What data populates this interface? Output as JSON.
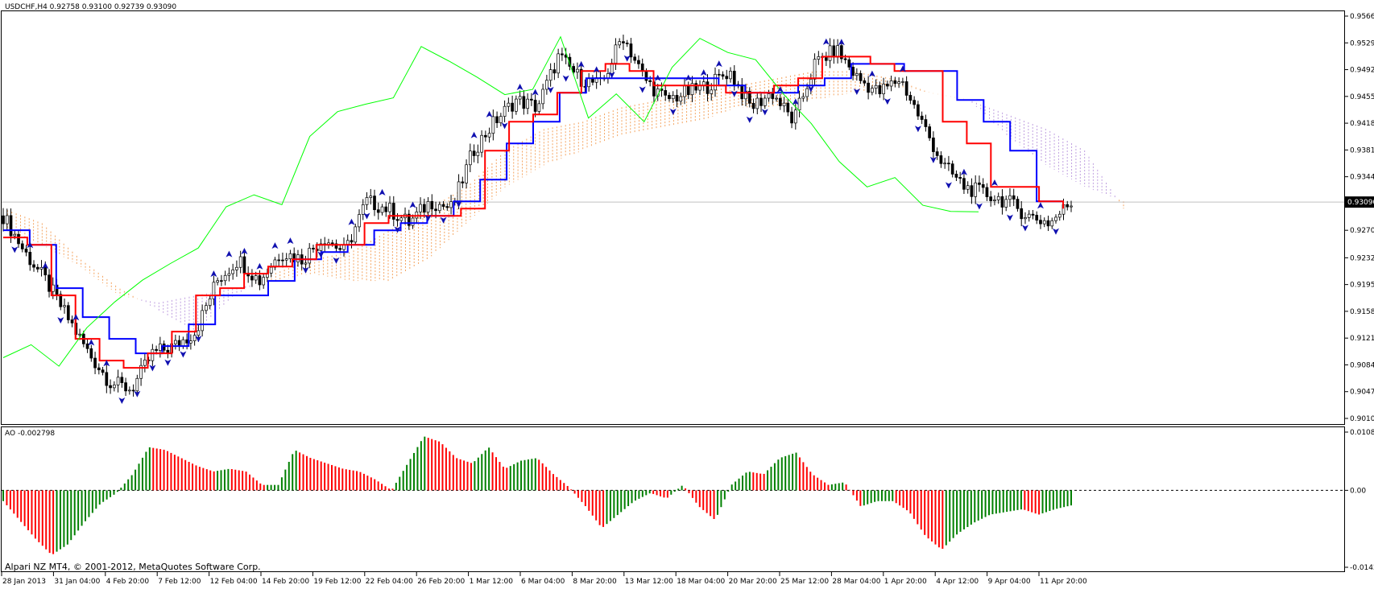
{
  "window": {
    "header": "USDCHF,H4  0.92758 0.93100 0.92739 0.93090",
    "copyright": "Alpari NZ MT4, © 2001-2012, MetaQuotes Software Corp."
  },
  "colors": {
    "background": "#ffffff",
    "frame": "#000000",
    "bull_candle": "#ffffff",
    "bear_candle": "#000000",
    "tenkan": "#ff0000",
    "kijun": "#0000ff",
    "chikou": "#00ff00",
    "cloud_up": "#f4a460",
    "cloud_down": "#c0a0e0",
    "fractal": "#1010b0",
    "ao_up": "#008000",
    "ao_down": "#ff0000",
    "current_price_line": "#c0c0c0"
  },
  "chart_data": [
    {
      "type": "candlestick",
      "symbol": "USDCHF",
      "timeframe": "H4",
      "last_bar": {
        "open": 0.92758,
        "high": 0.931,
        "low": 0.92739,
        "close": 0.9309
      },
      "current_price_label": "0.93090",
      "ylim": [
        0.901,
        0.9566
      ],
      "y_ticks": [
        "0.95660",
        "0.95290",
        "0.94920",
        "0.94550",
        "0.94180",
        "0.93810",
        "0.93440",
        "0.92700",
        "0.92320",
        "0.91950",
        "0.91580",
        "0.91210",
        "0.90840",
        "0.90470",
        "0.90100"
      ],
      "x_ticks": [
        "28 Jan 2013",
        "31 Jan 04:00",
        "4 Feb 20:00",
        "7 Feb 12:00",
        "12 Feb 04:00",
        "14 Feb 20:00",
        "19 Feb 12:00",
        "22 Feb 04:00",
        "26 Feb 20:00",
        "1 Mar 12:00",
        "6 Mar 04:00",
        "8 Mar 20:00",
        "13 Mar 12:00",
        "18 Mar 04:00",
        "20 Mar 20:00",
        "25 Mar 12:00",
        "28 Mar 04:00",
        "1 Apr 20:00",
        "4 Apr 12:00",
        "9 Apr 04:00",
        "11 Apr 20:00"
      ],
      "indicators": [
        "Ichimoku Kinko Hyo",
        "Fractals"
      ],
      "close_path": [
        0.929,
        0.924,
        0.92,
        0.915,
        0.91,
        0.906,
        0.905,
        0.91,
        0.911,
        0.913,
        0.92,
        0.923,
        0.92,
        0.924,
        0.923,
        0.926,
        0.924,
        0.931,
        0.93,
        0.928,
        0.931,
        0.93,
        0.938,
        0.942,
        0.945,
        0.944,
        0.951,
        0.948,
        0.947,
        0.954,
        0.948,
        0.945,
        0.946,
        0.947,
        0.949,
        0.944,
        0.946,
        0.942,
        0.95,
        0.952,
        0.948,
        0.946,
        0.948,
        0.942,
        0.936,
        0.933,
        0.932,
        0.931,
        0.929,
        0.928,
        0.9309
      ],
      "tenkan_path": [
        0.926,
        0.925,
        0.918,
        0.912,
        0.909,
        0.908,
        0.91,
        0.913,
        0.918,
        0.919,
        0.921,
        0.922,
        0.923,
        0.925,
        0.925,
        0.928,
        0.929,
        0.929,
        0.929,
        0.93,
        0.938,
        0.942,
        0.943,
        0.946,
        0.949,
        0.95,
        0.949,
        0.947,
        0.947,
        0.947,
        0.946,
        0.946,
        0.947,
        0.948,
        0.951,
        0.951,
        0.95,
        0.949,
        0.949,
        0.942,
        0.939,
        0.933,
        0.933,
        0.931,
        0.93
      ],
      "kijun_path": [
        0.927,
        0.925,
        0.919,
        0.915,
        0.912,
        0.91,
        0.911,
        0.914,
        0.918,
        0.918,
        0.92,
        0.923,
        0.924,
        0.925,
        0.927,
        0.928,
        0.929,
        0.931,
        0.934,
        0.939,
        0.942,
        0.946,
        0.948,
        0.948,
        0.948,
        0.948,
        0.948,
        0.947,
        0.946,
        0.946,
        0.947,
        0.948,
        0.95,
        0.95,
        0.949,
        0.949,
        0.945,
        0.942,
        0.938,
        0.931,
        0.931
      ],
      "chikou_path": [
        0.91,
        0.911,
        0.908,
        0.914,
        0.917,
        0.92,
        0.923,
        0.925,
        0.93,
        0.932,
        0.931,
        0.94,
        0.943,
        0.944,
        0.945,
        0.953,
        0.95,
        0.948,
        0.946,
        0.947,
        0.954,
        0.943,
        0.946,
        0.942,
        0.95,
        0.954,
        0.951,
        0.95,
        0.946,
        0.942,
        0.936,
        0.933,
        0.934,
        0.931,
        0.93,
        0.929
      ],
      "cloud": {
        "span_a": [
          0.93,
          0.928,
          0.923,
          0.919,
          0.916,
          0.913,
          0.918,
          0.921,
          0.923,
          0.924,
          0.927,
          0.93,
          0.933,
          0.938,
          0.941,
          0.942,
          0.944,
          0.945,
          0.946,
          0.947,
          0.948,
          0.949,
          0.949,
          0.948,
          0.946,
          0.945,
          0.94,
          0.936,
          0.933,
          0.931
        ],
        "span_b": [
          0.927,
          0.925,
          0.922,
          0.918,
          0.917,
          0.918,
          0.919,
          0.92,
          0.921,
          0.92,
          0.92,
          0.923,
          0.928,
          0.933,
          0.936,
          0.938,
          0.94,
          0.941,
          0.942,
          0.944,
          0.944,
          0.945,
          0.946,
          0.947,
          0.946,
          0.945,
          0.943,
          0.941,
          0.938,
          0.93
        ]
      }
    },
    {
      "type": "bar",
      "indicator": "AO",
      "label": "AO -0.002798",
      "ylim": [
        -0.01427,
        0.0108
      ],
      "y_ticks": [
        "0.01080",
        "0.00",
        "-0.01427"
      ],
      "values": [
        -0.002,
        -0.0055,
        -0.009,
        -0.012,
        -0.01,
        -0.006,
        -0.0025,
        -0.0005,
        0.003,
        0.008,
        0.0075,
        0.006,
        0.0045,
        0.0035,
        0.004,
        0.0035,
        0.001,
        0.001,
        0.0075,
        0.006,
        0.005,
        0.004,
        0.0035,
        0.002,
        0.0,
        0.005,
        0.01,
        0.009,
        0.006,
        0.005,
        0.008,
        0.004,
        0.0055,
        0.006,
        0.003,
        0.0005,
        -0.003,
        -0.007,
        -0.0045,
        -0.002,
        -0.0005,
        -0.0015,
        0.001,
        -0.003,
        -0.0055,
        0.001,
        0.0035,
        0.003,
        0.006,
        0.007,
        0.003,
        0.001,
        0.0015,
        -0.003,
        -0.002,
        -0.002,
        -0.004,
        -0.0085,
        -0.011,
        -0.008,
        -0.006,
        -0.0045,
        -0.004,
        -0.0035,
        -0.0045,
        -0.0035,
        -0.0028
      ]
    }
  ]
}
